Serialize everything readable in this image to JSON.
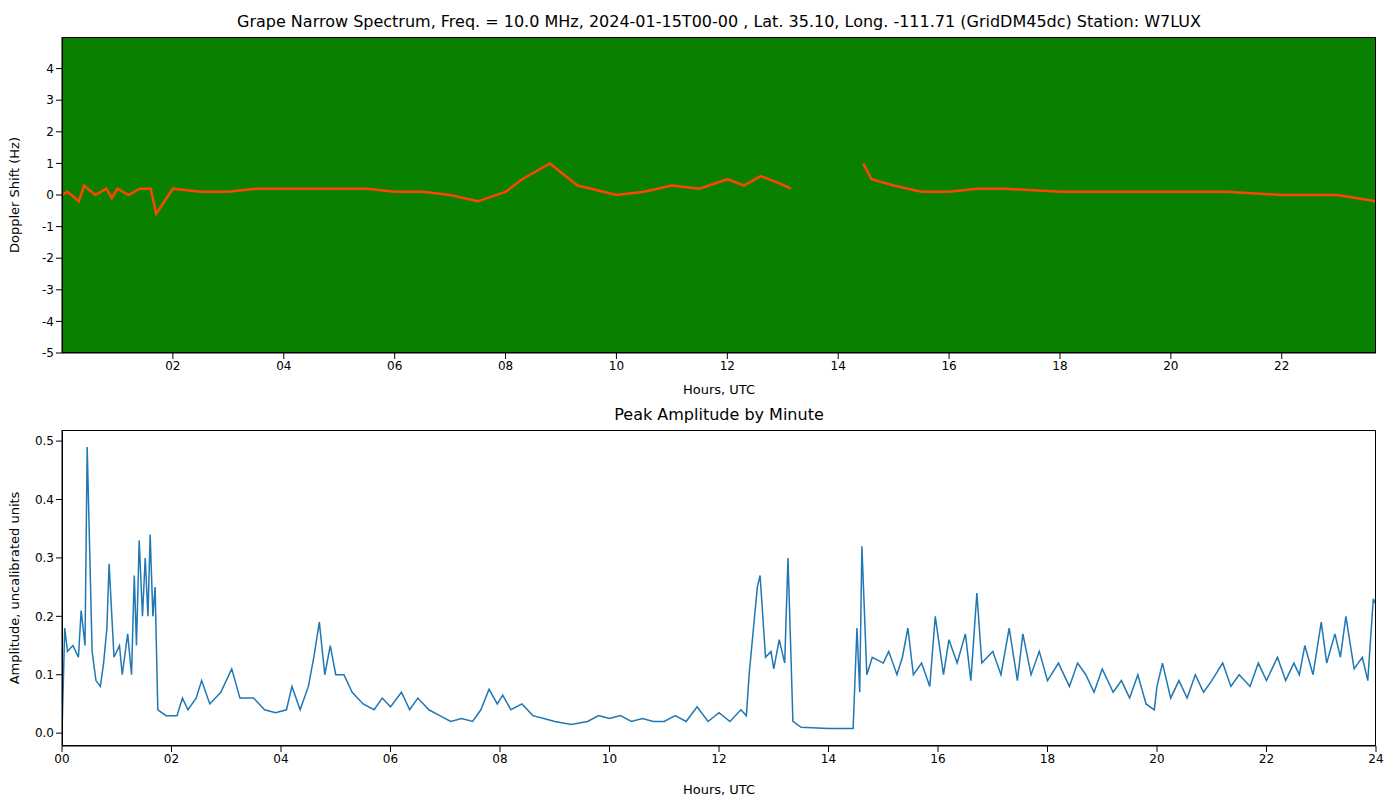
{
  "chart_data": [
    {
      "type": "spectrogram",
      "title": "Grape Narrow Spectrum, Freq. = 10.0 MHz, 2024-01-15T00-00 , Lat.  35.10, Long. -111.71 (GridDM45dc) Station: W7LUX",
      "x_label": "Hours, UTC",
      "y_label": "Doppler Shift (Hz)",
      "x": [
        0,
        0.1,
        0.3,
        0.4,
        0.6,
        0.8,
        0.9,
        1.0,
        1.2,
        1.4,
        1.6,
        1.7,
        2.0,
        2.5,
        3.0,
        3.5,
        4.0,
        4.5,
        5.0,
        5.5,
        6.0,
        6.5,
        7.0,
        7.5,
        8.0,
        8.3,
        8.8,
        9.3,
        10.0,
        10.5,
        11.0,
        11.5,
        12.0,
        12.3,
        12.6,
        12.9,
        13.15,
        13.3,
        14.45,
        14.6,
        15.0,
        15.5,
        16.0,
        16.5,
        17.0,
        18.0,
        19.0,
        20.0,
        21.0,
        22.0,
        23.0,
        23.7
      ],
      "values": [
        0,
        0.1,
        -0.2,
        0.3,
        0,
        0.2,
        -0.1,
        0.2,
        0,
        0.2,
        0.2,
        -0.6,
        0.2,
        0.1,
        0.1,
        0.2,
        0.2,
        0.2,
        0.2,
        0.2,
        0.1,
        0.1,
        0,
        -0.2,
        0.1,
        0.5,
        1.0,
        0.3,
        0,
        0.1,
        0.3,
        0.2,
        0.5,
        0.3,
        0.6,
        0.4,
        0.2,
        null,
        1.0,
        0.5,
        0.3,
        0.1,
        0.1,
        0.2,
        0.2,
        0.1,
        0.1,
        0.1,
        0.1,
        0,
        0,
        -0.2
      ],
      "color": "#ff4500",
      "xlim": [
        0,
        23.7
      ],
      "xticks": [
        {
          "value": 2,
          "label": "02"
        },
        {
          "value": 4,
          "label": "04"
        },
        {
          "value": 6,
          "label": "06"
        },
        {
          "value": 8,
          "label": "08"
        },
        10,
        12,
        14,
        16,
        18,
        20,
        22
      ],
      "ylim": [
        -5,
        5
      ],
      "yticks": [
        -5,
        -4,
        -3,
        -2,
        -1,
        0,
        1,
        2,
        3,
        4
      ]
    },
    {
      "type": "line",
      "title": "Peak Amplitude by Minute",
      "x_label": "Hours, UTC",
      "y_label": "Amplitude, uncalibrated units",
      "x": [
        0,
        0.05,
        0.1,
        0.2,
        0.3,
        0.35,
        0.42,
        0.46,
        0.55,
        0.62,
        0.7,
        0.76,
        0.82,
        0.86,
        0.95,
        1.05,
        1.1,
        1.2,
        1.27,
        1.32,
        1.36,
        1.41,
        1.47,
        1.52,
        1.57,
        1.61,
        1.66,
        1.7,
        1.75,
        1.9,
        2.1,
        2.2,
        2.3,
        2.45,
        2.55,
        2.7,
        2.9,
        3.1,
        3.25,
        3.5,
        3.7,
        3.9,
        4.1,
        4.2,
        4.35,
        4.5,
        4.6,
        4.7,
        4.8,
        4.9,
        5.0,
        5.15,
        5.3,
        5.5,
        5.7,
        5.85,
        6.0,
        6.2,
        6.35,
        6.5,
        6.7,
        6.9,
        7.1,
        7.3,
        7.5,
        7.65,
        7.8,
        7.95,
        8.05,
        8.2,
        8.4,
        8.6,
        8.8,
        9.0,
        9.3,
        9.6,
        9.8,
        10.0,
        10.2,
        10.4,
        10.6,
        10.8,
        11.0,
        11.2,
        11.4,
        11.6,
        11.8,
        12.0,
        12.2,
        12.4,
        12.5,
        12.55,
        12.7,
        12.75,
        12.85,
        12.95,
        13.0,
        13.1,
        13.2,
        13.26,
        13.35,
        13.5,
        14.0,
        14.45,
        14.52,
        14.57,
        14.61,
        14.7,
        14.8,
        15.0,
        15.1,
        15.25,
        15.35,
        15.45,
        15.55,
        15.7,
        15.85,
        15.95,
        16.1,
        16.2,
        16.35,
        16.5,
        16.6,
        16.71,
        16.8,
        17.0,
        17.15,
        17.3,
        17.45,
        17.55,
        17.7,
        17.85,
        18.0,
        18.2,
        18.4,
        18.55,
        18.7,
        18.85,
        19.0,
        19.2,
        19.35,
        19.5,
        19.65,
        19.8,
        19.95,
        20.0,
        20.1,
        20.25,
        20.4,
        20.55,
        20.7,
        20.85,
        21.0,
        21.2,
        21.35,
        21.5,
        21.7,
        21.85,
        22.0,
        22.2,
        22.35,
        22.5,
        22.6,
        22.7,
        22.85,
        23.0,
        23.1,
        23.25,
        23.35,
        23.45,
        23.6,
        23.75,
        23.85,
        23.95,
        24.0
      ],
      "values": [
        0,
        0.18,
        0.14,
        0.15,
        0.13,
        0.21,
        0.15,
        0.49,
        0.14,
        0.09,
        0.08,
        0.12,
        0.18,
        0.29,
        0.13,
        0.15,
        0.1,
        0.17,
        0.1,
        0.27,
        0.15,
        0.33,
        0.2,
        0.3,
        0.2,
        0.34,
        0.2,
        0.25,
        0.04,
        0.03,
        0.03,
        0.06,
        0.04,
        0.06,
        0.09,
        0.05,
        0.07,
        0.11,
        0.06,
        0.06,
        0.04,
        0.035,
        0.04,
        0.08,
        0.04,
        0.08,
        0.13,
        0.19,
        0.1,
        0.15,
        0.1,
        0.1,
        0.07,
        0.05,
        0.04,
        0.06,
        0.045,
        0.07,
        0.04,
        0.06,
        0.04,
        0.03,
        0.02,
        0.025,
        0.02,
        0.04,
        0.075,
        0.05,
        0.065,
        0.04,
        0.05,
        0.03,
        0.025,
        0.02,
        0.015,
        0.02,
        0.03,
        0.025,
        0.03,
        0.02,
        0.025,
        0.02,
        0.02,
        0.03,
        0.02,
        0.045,
        0.02,
        0.035,
        0.02,
        0.04,
        0.03,
        0.1,
        0.25,
        0.27,
        0.13,
        0.14,
        0.11,
        0.16,
        0.12,
        0.3,
        0.02,
        0.01,
        0.008,
        0.008,
        0.18,
        0.07,
        0.32,
        0.1,
        0.13,
        0.12,
        0.14,
        0.1,
        0.13,
        0.18,
        0.1,
        0.12,
        0.08,
        0.2,
        0.1,
        0.16,
        0.12,
        0.17,
        0.09,
        0.24,
        0.12,
        0.14,
        0.1,
        0.18,
        0.09,
        0.17,
        0.1,
        0.14,
        0.09,
        0.12,
        0.08,
        0.12,
        0.1,
        0.07,
        0.11,
        0.07,
        0.09,
        0.06,
        0.1,
        0.05,
        0.04,
        0.08,
        0.12,
        0.06,
        0.09,
        0.06,
        0.1,
        0.07,
        0.09,
        0.12,
        0.08,
        0.1,
        0.08,
        0.12,
        0.09,
        0.13,
        0.09,
        0.12,
        0.1,
        0.15,
        0.1,
        0.19,
        0.12,
        0.17,
        0.13,
        0.2,
        0.11,
        0.13,
        0.09,
        0.23,
        0.22
      ],
      "color": "#1f77b4",
      "xlim": [
        0,
        24
      ],
      "xticks": [
        {
          "value": 0,
          "label": "00"
        },
        {
          "value": 2,
          "label": "02"
        },
        {
          "value": 4,
          "label": "04"
        },
        {
          "value": 6,
          "label": "06"
        },
        {
          "value": 8,
          "label": "08"
        },
        10,
        12,
        14,
        16,
        18,
        20,
        22,
        24
      ],
      "ylim": [
        -0.022,
        0.519
      ],
      "yticks": [
        {
          "value": 0,
          "label": "0.0"
        },
        0.1,
        0.2,
        0.3,
        0.4,
        0.5
      ]
    }
  ]
}
